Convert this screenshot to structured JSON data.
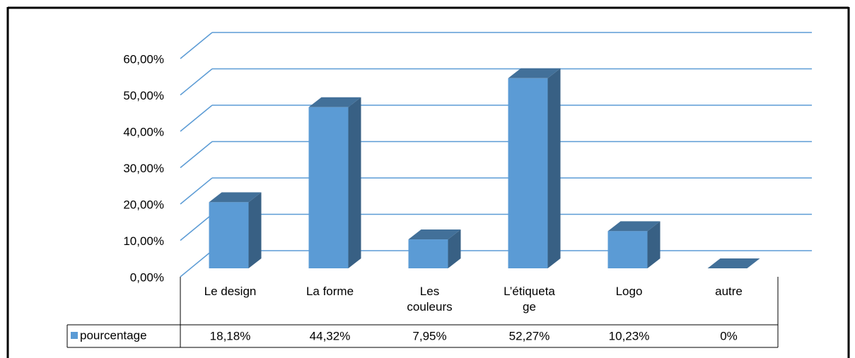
{
  "chart_data": {
    "type": "bar3d",
    "categories": [
      "Le design",
      "La forme",
      "Les couleurs",
      "L’étiquetage",
      "Logo",
      "autre"
    ],
    "series": [
      {
        "name": "pourcentage",
        "color": "#5b9bd5",
        "values": [
          18.18,
          44.32,
          7.95,
          52.27,
          10.23,
          0
        ],
        "value_labels": [
          "18,18%",
          "44,32%",
          "7,95%",
          "52,27%",
          "10,23%",
          "0%"
        ]
      }
    ],
    "ylim": [
      0,
      60
    ],
    "yticks": [
      {
        "value": 0,
        "label": "0,00%"
      },
      {
        "value": 10,
        "label": "10,00%"
      },
      {
        "value": 20,
        "label": "20,00%"
      },
      {
        "value": 30,
        "label": "30,00%"
      },
      {
        "value": 40,
        "label": "40,00%"
      },
      {
        "value": 50,
        "label": "50,00%"
      },
      {
        "value": 60,
        "label": "60,00%"
      }
    ],
    "grid": true
  }
}
